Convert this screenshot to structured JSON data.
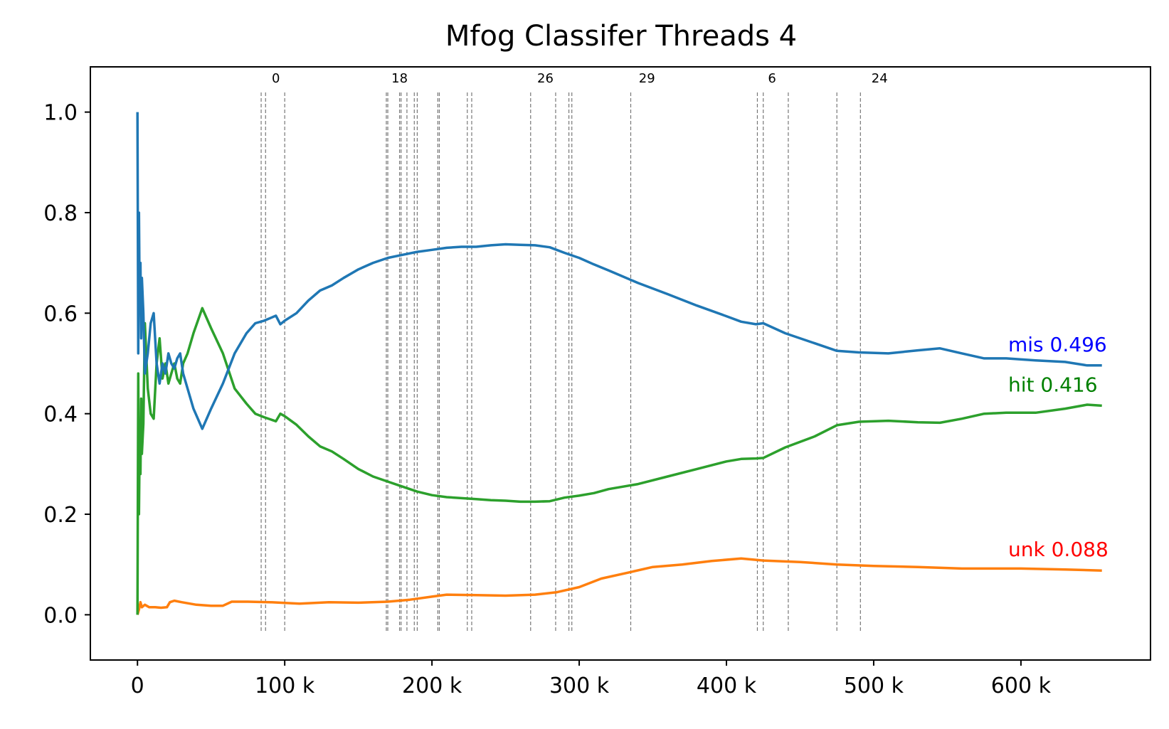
{
  "chart_data": {
    "type": "line",
    "title": "Mfog Classifer Threads 4",
    "xlabel": "",
    "ylabel": "",
    "xlim": [
      -32000,
      688000
    ],
    "ylim": [
      -0.09,
      1.09
    ],
    "x_ticks": [
      0,
      100000,
      200000,
      300000,
      400000,
      500000,
      600000
    ],
    "x_tick_labels": [
      "0",
      "100 k",
      "200 k",
      "300 k",
      "400 k",
      "500 k",
      "600 k"
    ],
    "y_ticks": [
      0.0,
      0.2,
      0.4,
      0.6,
      0.8,
      1.0
    ],
    "y_tick_labels": [
      "0.0",
      "0.2",
      "0.4",
      "0.6",
      "0.8",
      "1.0"
    ],
    "grid": false,
    "legend": "none",
    "drift_lines": [
      84000,
      87000,
      100000,
      169000,
      170000,
      178000,
      179000,
      183000,
      188000,
      190000,
      204000,
      205000,
      224000,
      227000,
      267000,
      284000,
      293000,
      295000,
      335000,
      421000,
      425000,
      442000,
      475000,
      491000
    ],
    "drift_labels": [
      {
        "x": 94000,
        "text": "0"
      },
      {
        "x": 178000,
        "text": "18"
      },
      {
        "x": 277000,
        "text": "26"
      },
      {
        "x": 346000,
        "text": "29"
      },
      {
        "x": 431000,
        "text": "6"
      },
      {
        "x": 504000,
        "text": "24"
      }
    ],
    "series": [
      {
        "name": "mis",
        "color": "#1f77b4",
        "end_label": "mis 0.496",
        "label_color": "#0000ff",
        "x": [
          0,
          500,
          1000,
          1500,
          2000,
          2500,
          3000,
          4000,
          5000,
          7000,
          9000,
          11000,
          13000,
          15000,
          17000,
          19000,
          21000,
          23000,
          25000,
          27000,
          29000,
          31000,
          34000,
          38000,
          44000,
          50000,
          58000,
          66000,
          74000,
          80000,
          86000,
          94000,
          97000,
          100000,
          108000,
          116000,
          124000,
          132000,
          140000,
          150000,
          160000,
          170000,
          180000,
          190000,
          200000,
          210000,
          220000,
          230000,
          240000,
          250000,
          260000,
          270000,
          280000,
          290000,
          300000,
          310000,
          320000,
          340000,
          360000,
          380000,
          400000,
          410000,
          420000,
          425000,
          440000,
          460000,
          475000,
          490000,
          510000,
          530000,
          545000,
          560000,
          575000,
          590000,
          610000,
          630000,
          645000,
          655000
        ],
        "y": [
          1.0,
          0.52,
          0.8,
          0.62,
          0.7,
          0.55,
          0.67,
          0.6,
          0.48,
          0.52,
          0.58,
          0.6,
          0.5,
          0.46,
          0.5,
          0.48,
          0.52,
          0.5,
          0.49,
          0.51,
          0.52,
          0.48,
          0.45,
          0.41,
          0.37,
          0.41,
          0.46,
          0.52,
          0.56,
          0.58,
          0.585,
          0.595,
          0.578,
          0.585,
          0.6,
          0.625,
          0.645,
          0.655,
          0.67,
          0.687,
          0.7,
          0.71,
          0.716,
          0.722,
          0.726,
          0.73,
          0.732,
          0.732,
          0.735,
          0.737,
          0.736,
          0.735,
          0.731,
          0.72,
          0.71,
          0.697,
          0.685,
          0.66,
          0.638,
          0.615,
          0.594,
          0.583,
          0.578,
          0.58,
          0.56,
          0.54,
          0.525,
          0.522,
          0.52,
          0.526,
          0.53,
          0.52,
          0.51,
          0.51,
          0.506,
          0.503,
          0.496,
          0.496
        ]
      },
      {
        "name": "hit",
        "color": "#2ca02c",
        "end_label": "hit 0.416",
        "label_color": "#008000",
        "x": [
          0,
          500,
          1000,
          1500,
          2000,
          2500,
          3000,
          4000,
          5000,
          7000,
          9000,
          11000,
          13000,
          15000,
          17000,
          19000,
          21000,
          23000,
          25000,
          27000,
          29000,
          31000,
          34000,
          38000,
          44000,
          50000,
          58000,
          66000,
          74000,
          80000,
          86000,
          94000,
          97000,
          100000,
          108000,
          116000,
          124000,
          132000,
          140000,
          150000,
          160000,
          170000,
          180000,
          190000,
          200000,
          210000,
          220000,
          230000,
          240000,
          250000,
          260000,
          270000,
          280000,
          290000,
          300000,
          310000,
          320000,
          340000,
          360000,
          380000,
          400000,
          410000,
          420000,
          425000,
          440000,
          460000,
          475000,
          490000,
          510000,
          530000,
          545000,
          560000,
          575000,
          590000,
          610000,
          630000,
          645000,
          655000
        ],
        "y": [
          0.0,
          0.48,
          0.2,
          0.35,
          0.28,
          0.43,
          0.32,
          0.38,
          0.58,
          0.45,
          0.4,
          0.39,
          0.5,
          0.55,
          0.47,
          0.5,
          0.46,
          0.48,
          0.5,
          0.47,
          0.46,
          0.5,
          0.52,
          0.56,
          0.61,
          0.57,
          0.52,
          0.45,
          0.42,
          0.4,
          0.393,
          0.385,
          0.4,
          0.395,
          0.378,
          0.355,
          0.335,
          0.325,
          0.31,
          0.29,
          0.275,
          0.265,
          0.255,
          0.245,
          0.238,
          0.234,
          0.232,
          0.23,
          0.228,
          0.227,
          0.225,
          0.225,
          0.226,
          0.233,
          0.237,
          0.242,
          0.25,
          0.26,
          0.275,
          0.29,
          0.305,
          0.31,
          0.311,
          0.312,
          0.333,
          0.355,
          0.377,
          0.384,
          0.386,
          0.383,
          0.382,
          0.39,
          0.4,
          0.402,
          0.402,
          0.41,
          0.418,
          0.416
        ]
      },
      {
        "name": "unk",
        "color": "#ff7f0e",
        "end_label": "unk 0.088",
        "label_color": "#ff0000",
        "x": [
          0,
          1000,
          2000,
          3000,
          5000,
          8000,
          12000,
          16000,
          20000,
          22000,
          25000,
          30000,
          40000,
          50000,
          58000,
          64000,
          75000,
          90000,
          110000,
          130000,
          150000,
          170000,
          185000,
          200000,
          210000,
          230000,
          250000,
          270000,
          285000,
          300000,
          315000,
          335000,
          350000,
          370000,
          390000,
          410000,
          425000,
          450000,
          475000,
          500000,
          530000,
          560000,
          600000,
          630000,
          655000
        ],
        "y": [
          0.0,
          0.01,
          0.025,
          0.015,
          0.02,
          0.015,
          0.015,
          0.014,
          0.015,
          0.025,
          0.028,
          0.025,
          0.02,
          0.018,
          0.018,
          0.026,
          0.026,
          0.025,
          0.022,
          0.025,
          0.024,
          0.026,
          0.03,
          0.036,
          0.04,
          0.039,
          0.038,
          0.04,
          0.045,
          0.055,
          0.072,
          0.085,
          0.095,
          0.1,
          0.107,
          0.112,
          0.108,
          0.105,
          0.1,
          0.097,
          0.095,
          0.092,
          0.092,
          0.09,
          0.088
        ]
      }
    ]
  }
}
